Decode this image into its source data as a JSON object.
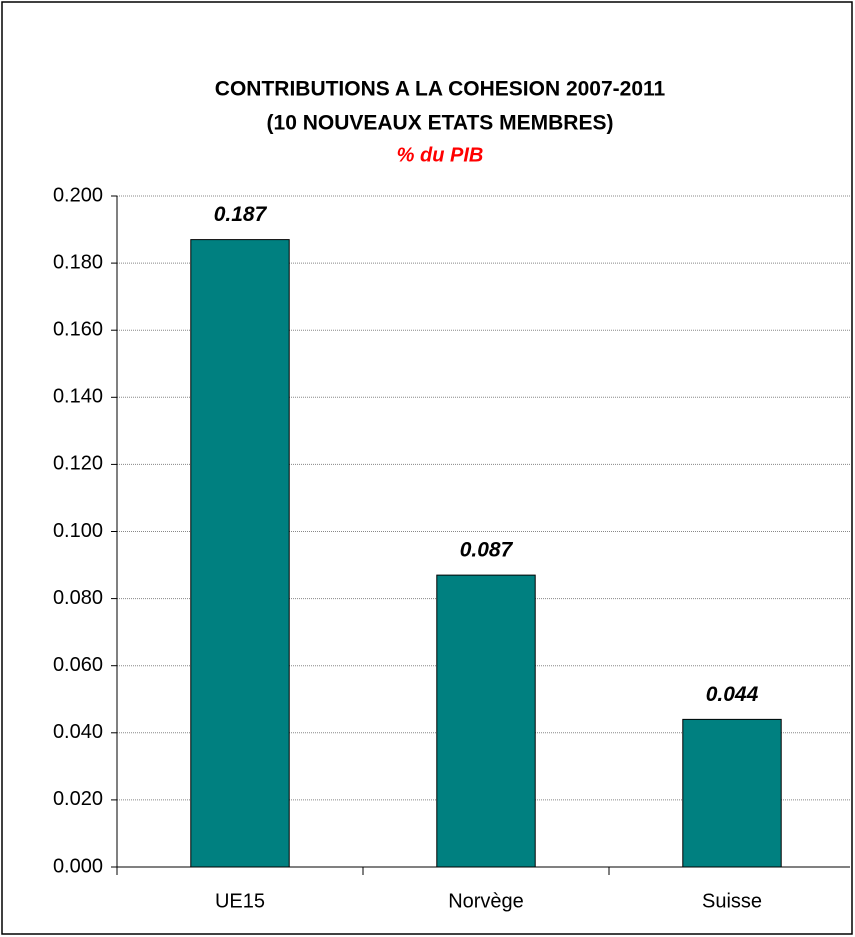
{
  "chart_data": {
    "type": "bar",
    "title": [
      "CONTRIBUTIONS A LA COHESION 2007-2011",
      "(10 NOUVEAUX ETATS MEMBRES)"
    ],
    "subtitle": "% du PIB",
    "categories": [
      "UE15",
      "Norvège",
      "Suisse"
    ],
    "values": [
      0.187,
      0.087,
      0.044
    ],
    "color": "#008080",
    "ylim": [
      0,
      0.2
    ],
    "yticks": [
      {
        "value": 0,
        "label": "0.000"
      },
      {
        "value": 0.02,
        "label": "0.020"
      },
      {
        "value": 0.04,
        "label": "0.040"
      },
      {
        "value": 0.06,
        "label": "0.060"
      },
      {
        "value": 0.08,
        "label": "0.080"
      },
      {
        "value": 0.1,
        "label": "0.100"
      },
      {
        "value": 0.12,
        "label": "0.120"
      },
      {
        "value": 0.14,
        "label": "0.140"
      },
      {
        "value": 0.16,
        "label": "0.160"
      },
      {
        "value": 0.18,
        "label": "0.180"
      },
      {
        "value": 0.2,
        "label": "0.200"
      }
    ],
    "grid": true
  }
}
